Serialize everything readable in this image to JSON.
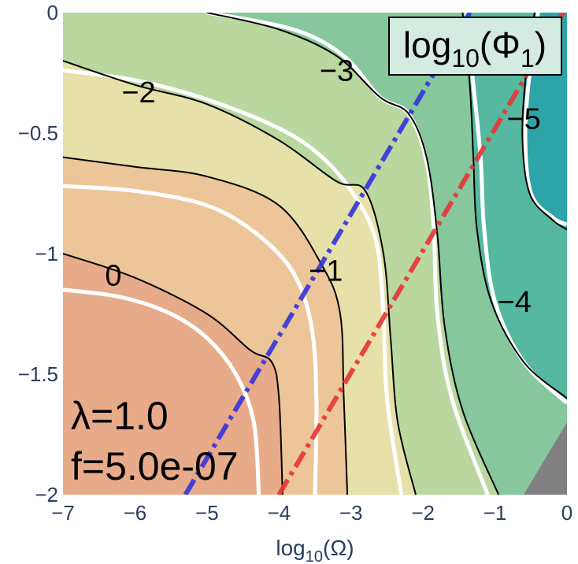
{
  "chart_data": {
    "type": "contour",
    "title": "log10(Φ1)",
    "title_parts": {
      "base": "log",
      "base_sub": "10",
      "open": "(Φ",
      "arg_sub": "1",
      "close": ")"
    },
    "xlabel": "log10(Ω)",
    "xlabel_parts": {
      "base": "log",
      "base_sub": "10",
      "rest": "(Ω)"
    },
    "ylabel": "",
    "xlim": [
      -7,
      0
    ],
    "ylim": [
      -2,
      0
    ],
    "x_ticks": [
      -7,
      -6,
      -5,
      -4,
      -3,
      -2,
      -1,
      0
    ],
    "x_tick_labels": [
      "−7",
      "−6",
      "−5",
      "−4",
      "−3",
      "−2",
      "−1",
      "0"
    ],
    "y_ticks": [
      0,
      -0.5,
      -1,
      -1.5,
      -2
    ],
    "y_tick_labels": [
      "0",
      "−0.5",
      "−1",
      "−1.5",
      "−2"
    ],
    "grid": false,
    "bands": [
      {
        "level": 1,
        "color": "#e8ab8a"
      },
      {
        "level": 0,
        "color": "#ecc698"
      },
      {
        "level": -1,
        "color": "#e6e1a8"
      },
      {
        "level": -2,
        "color": "#b9d79e"
      },
      {
        "level": -3,
        "color": "#86c79c"
      },
      {
        "level": -4,
        "color": "#55b89f"
      },
      {
        "level": -5,
        "color": "#2ea4a8"
      }
    ],
    "contours": [
      {
        "level": 0.5,
        "style": "white",
        "points": [
          [
            -7,
            -1.15
          ],
          [
            -6.2,
            -1.18
          ],
          [
            -5.5,
            -1.25
          ],
          [
            -5.0,
            -1.35
          ],
          [
            -4.6,
            -1.5
          ],
          [
            -4.35,
            -1.7
          ],
          [
            -4.28,
            -2.0
          ]
        ]
      },
      {
        "level": 0,
        "style": "black",
        "label": "0",
        "label_at": [
          -6.3,
          -1.09
        ],
        "points": [
          [
            -7,
            -1.0
          ],
          [
            -6.0,
            -1.1
          ],
          [
            -5.0,
            -1.25
          ],
          [
            -4.4,
            -1.4
          ],
          [
            -4.1,
            -1.45
          ],
          [
            -4.0,
            -1.6
          ],
          [
            -3.95,
            -2.0
          ]
        ]
      },
      {
        "level": -0.5,
        "style": "white",
        "points": [
          [
            -7,
            -0.72
          ],
          [
            -6.0,
            -0.74
          ],
          [
            -5.0,
            -0.8
          ],
          [
            -4.3,
            -0.92
          ],
          [
            -3.8,
            -1.08
          ],
          [
            -3.55,
            -1.3
          ],
          [
            -3.48,
            -1.6
          ],
          [
            -3.5,
            -2.0
          ]
        ]
      },
      {
        "level": -1,
        "style": "black",
        "label": "−1",
        "label_at": [
          -3.35,
          -1.07
        ],
        "points": [
          [
            -7,
            -0.6
          ],
          [
            -6.0,
            -0.64
          ],
          [
            -5.0,
            -0.68
          ],
          [
            -4.0,
            -0.8
          ],
          [
            -3.4,
            -1.05
          ],
          [
            -3.15,
            -1.25
          ],
          [
            -3.1,
            -1.6
          ],
          [
            -3.05,
            -2.0
          ]
        ]
      },
      {
        "level": -1.5,
        "style": "white",
        "points": [
          [
            -7,
            -0.24
          ],
          [
            -6.0,
            -0.28
          ],
          [
            -5.0,
            -0.36
          ],
          [
            -4.0,
            -0.48
          ],
          [
            -3.4,
            -0.6
          ],
          [
            -2.95,
            -0.76
          ],
          [
            -2.65,
            -0.95
          ],
          [
            -2.55,
            -1.25
          ],
          [
            -2.5,
            -1.6
          ],
          [
            -2.3,
            -2.0
          ]
        ]
      },
      {
        "level": -2,
        "style": "black",
        "label": "−2",
        "label_at": [
          -5.95,
          -0.33
        ],
        "points": [
          [
            -7,
            -0.2
          ],
          [
            -6.0,
            -0.3
          ],
          [
            -5.0,
            -0.38
          ],
          [
            -4.0,
            -0.53
          ],
          [
            -3.2,
            -0.7
          ],
          [
            -2.8,
            -0.74
          ],
          [
            -2.55,
            -1.0
          ],
          [
            -2.45,
            -1.35
          ],
          [
            -2.35,
            -1.7
          ],
          [
            -2.1,
            -2.0
          ]
        ]
      },
      {
        "level": -2.5,
        "style": "white",
        "points": [
          [
            -5.0,
            0.0
          ],
          [
            -3.8,
            -0.07
          ],
          [
            -3.1,
            -0.18
          ],
          [
            -2.6,
            -0.35
          ],
          [
            -2.2,
            -0.42
          ],
          [
            -1.95,
            -0.62
          ],
          [
            -1.85,
            -0.9
          ],
          [
            -1.8,
            -1.25
          ],
          [
            -1.6,
            -1.6
          ],
          [
            -1.1,
            -2.0
          ]
        ]
      },
      {
        "level": -3,
        "style": "black",
        "label": "−3",
        "label_at": [
          -3.2,
          -0.24
        ],
        "points": [
          [
            -5.0,
            0.0
          ],
          [
            -4.0,
            -0.07
          ],
          [
            -3.2,
            -0.18
          ],
          [
            -2.6,
            -0.35
          ],
          [
            -2.2,
            -0.42
          ],
          [
            -1.95,
            -0.6
          ],
          [
            -1.8,
            -0.92
          ],
          [
            -1.7,
            -1.3
          ],
          [
            -1.45,
            -1.65
          ],
          [
            -0.95,
            -2.0
          ]
        ]
      },
      {
        "level": -3.5,
        "style": "white",
        "points": [
          [
            -1.4,
            0.0
          ],
          [
            -1.3,
            -0.3
          ],
          [
            -1.2,
            -0.6
          ],
          [
            -1.15,
            -0.9
          ],
          [
            -1.0,
            -1.2
          ],
          [
            -0.6,
            -1.45
          ],
          [
            0.0,
            -1.62
          ]
        ]
      },
      {
        "level": -4,
        "style": "black",
        "label": "−4",
        "label_at": [
          -0.73,
          -1.2
        ],
        "points": [
          [
            -1.45,
            0.0
          ],
          [
            -1.35,
            -0.3
          ],
          [
            -1.3,
            -0.6
          ],
          [
            -1.25,
            -0.9
          ],
          [
            -1.05,
            -1.2
          ],
          [
            -0.6,
            -1.45
          ],
          [
            0.0,
            -1.6
          ]
        ]
      },
      {
        "level": -4.5,
        "style": "white",
        "points": [
          [
            -0.4,
            0.0
          ],
          [
            -0.5,
            -0.2
          ],
          [
            -0.58,
            -0.5
          ],
          [
            -0.5,
            -0.75
          ],
          [
            -0.2,
            -0.85
          ],
          [
            0.0,
            -0.88
          ]
        ]
      },
      {
        "level": -5,
        "style": "black",
        "label": "−5",
        "label_at": [
          -0.6,
          -0.44
        ],
        "points": [
          [
            -0.45,
            0.0
          ],
          [
            -0.55,
            -0.2
          ],
          [
            -0.62,
            -0.5
          ],
          [
            -0.52,
            -0.75
          ],
          [
            -0.2,
            -0.86
          ],
          [
            0.0,
            -0.9
          ]
        ]
      }
    ],
    "lines": [
      {
        "color": "#3333dd",
        "dash": "dashdot",
        "points": [
          [
            -5.3,
            -2.0
          ],
          [
            -1.35,
            0.0
          ]
        ]
      },
      {
        "color": "#e83333",
        "dash": "dashdot",
        "points": [
          [
            -4.0,
            -2.0
          ],
          [
            -0.05,
            0.0
          ]
        ]
      }
    ],
    "gray_region": [
      [
        0.0,
        -1.7
      ],
      [
        -0.6,
        -2.0
      ],
      [
        0.0,
        -2.0
      ]
    ],
    "gray_color": "#808080",
    "annotations": [
      "λ=1.0",
      "f=5.0e-07"
    ]
  }
}
